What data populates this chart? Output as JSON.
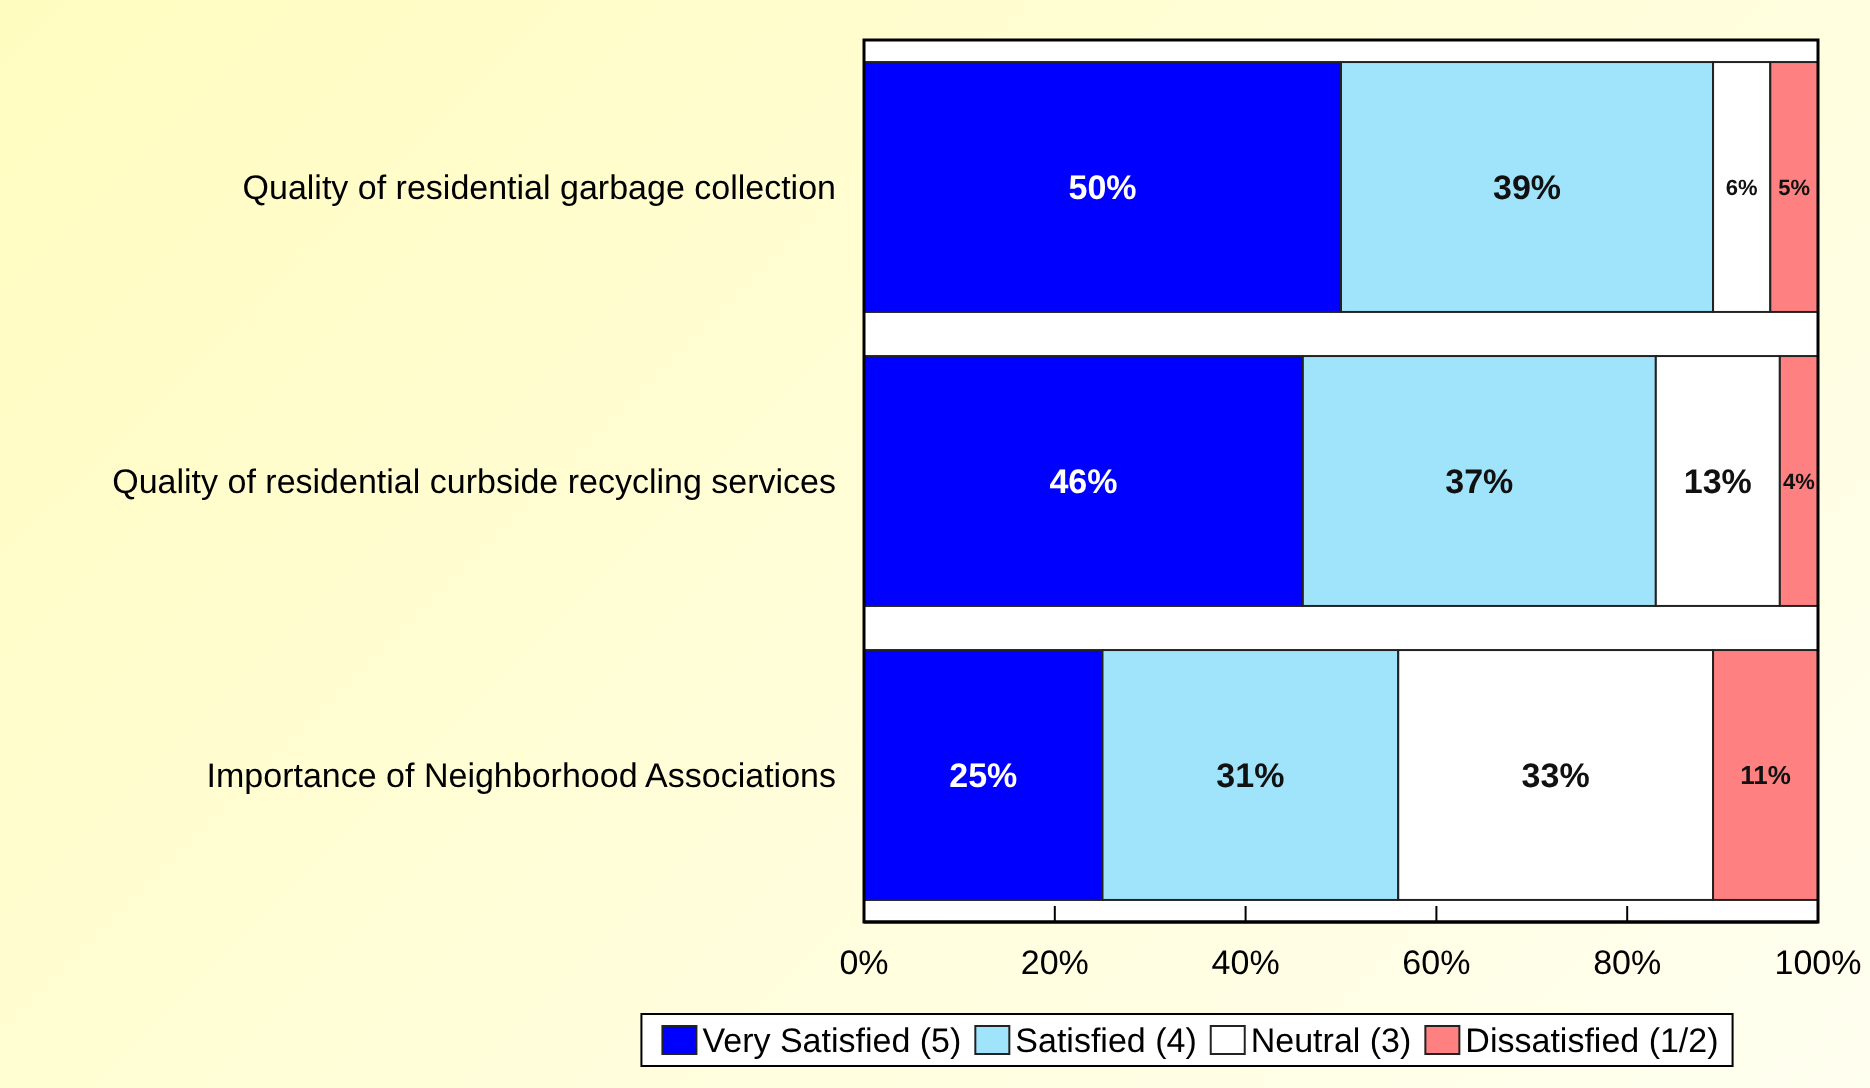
{
  "chart_data": {
    "type": "bar",
    "orientation": "horizontal",
    "stacked": true,
    "categories": [
      "Quality of residential garbage collection",
      "Quality of residential curbside recycling services",
      "Importance of Neighborhood Associations"
    ],
    "series": [
      {
        "name": "Very Satisfied (5)",
        "color": "#0000ff",
        "values": [
          50,
          46,
          25
        ],
        "value_labels": [
          "50%",
          "46%",
          "25%"
        ]
      },
      {
        "name": "Satisfied (4)",
        "color": "#a0e4fc",
        "values": [
          39,
          37,
          31
        ],
        "value_labels": [
          "39%",
          "37%",
          "31%"
        ]
      },
      {
        "name": "Neutral (3)",
        "color": "#ffffff",
        "values": [
          6,
          13,
          33
        ],
        "value_labels": [
          "6%",
          "13%",
          "33%"
        ]
      },
      {
        "name": "Dissatisfied (1/2)",
        "color": "#ff8080",
        "values": [
          5,
          4,
          11
        ],
        "value_labels": [
          "5%",
          "4%",
          "11%"
        ]
      }
    ],
    "xlim": [
      0,
      100
    ],
    "xticks": [
      {
        "value": 0,
        "label": "0%"
      },
      {
        "value": 20,
        "label": "20%"
      },
      {
        "value": 40,
        "label": "40%"
      },
      {
        "value": 60,
        "label": "60%"
      },
      {
        "value": 80,
        "label": "80%"
      },
      {
        "value": 100,
        "label": "100%"
      }
    ],
    "legend": "bottom",
    "grid": false
  }
}
